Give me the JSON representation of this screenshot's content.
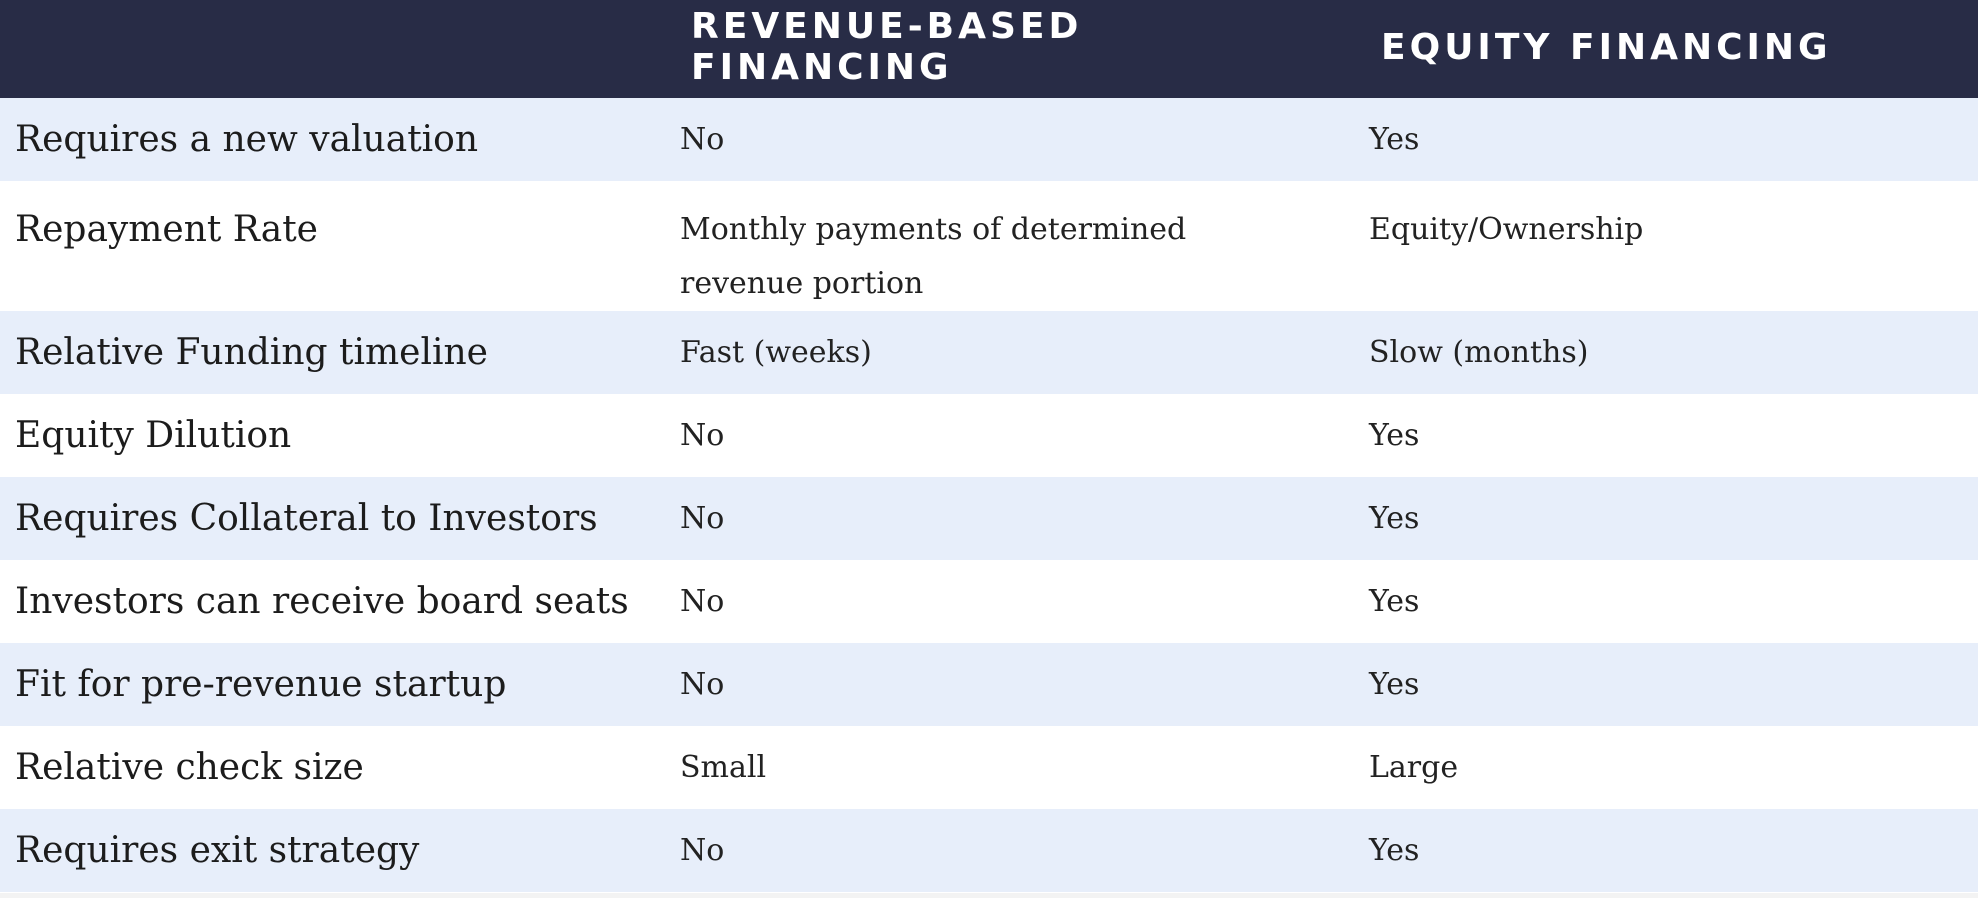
{
  "table": {
    "headers": [
      "",
      "REVENUE-BASED FINANCING",
      "EQUITY FINANCING"
    ],
    "rows": [
      {
        "feature": "Requires a new valuation",
        "rbf": "No",
        "equity": "Yes"
      },
      {
        "feature": "Repayment Rate",
        "rbf_line1": "Monthly payments of determined",
        "rbf_line2": "revenue portion",
        "equity": "Equity/Ownership"
      },
      {
        "feature": "Relative Funding timeline",
        "rbf": "Fast (weeks)",
        "equity": "Slow (months)"
      },
      {
        "feature": "Equity Dilution",
        "rbf": "No",
        "equity": "Yes"
      },
      {
        "feature": "Requires Collateral to Investors",
        "rbf": "No",
        "equity": "Yes"
      },
      {
        "feature": "Investors can receive board seats",
        "rbf": "No",
        "equity": "Yes"
      },
      {
        "feature": "Fit for pre-revenue startup",
        "rbf": "No",
        "equity": "Yes"
      },
      {
        "feature": "Relative check size",
        "rbf": "Small",
        "equity": "Large"
      },
      {
        "feature": "Requires exit strategy",
        "rbf": "No",
        "equity": "Yes"
      }
    ]
  },
  "colors": {
    "header_bg": "#282c46",
    "row_alt_bg": "#e7eefa",
    "row_bg": "#ffffff"
  }
}
